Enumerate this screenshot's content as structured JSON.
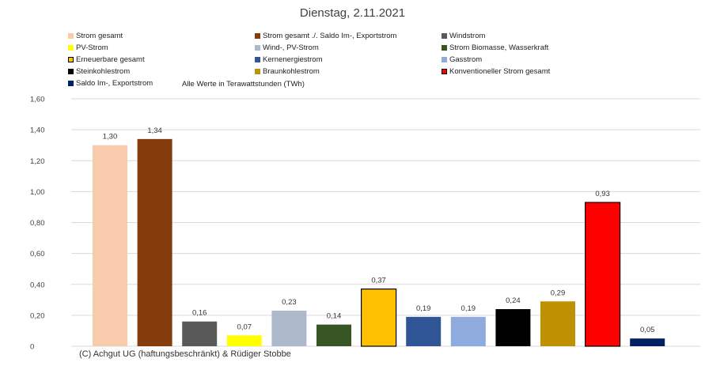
{
  "chart_data": {
    "type": "bar",
    "title": "Dienstag, 2.11.2021",
    "subtitle": "Alle Werte in Terawattstunden (TWh)",
    "ylim": [
      0,
      1.6
    ],
    "yticks": [
      "0",
      "0,20",
      "0,40",
      "0,60",
      "0,80",
      "1,00",
      "1,20",
      "1,40",
      "1,60"
    ],
    "grid": true,
    "legend_position": "top",
    "categories": [
      "Strom gesamt",
      "Strom gesamt ./. Saldo Im-, Exportstrom",
      "Windstrom",
      "PV-Strom",
      "Wind-, PV-Strom",
      "Strom Biomasse, Wasserkraft",
      "Erneuerbare gesamt",
      "Kernenergiestrom",
      "Gasstrom",
      "Steinkohlestrom",
      "Braunkohlestrom",
      "Konventioneller Strom gesamt",
      "Saldo Im-, Exportstrom"
    ],
    "values": [
      1.3,
      1.34,
      0.16,
      0.07,
      0.23,
      0.14,
      0.37,
      0.19,
      0.19,
      0.24,
      0.29,
      0.93,
      0.05
    ],
    "value_labels": [
      "1,30",
      "1,34",
      "0,16",
      "0,07",
      "0,23",
      "0,14",
      "0,37",
      "0,19",
      "0,19",
      "0,24",
      "0,29",
      "0,93",
      "0,05"
    ],
    "colors": [
      "#f8cbad",
      "#843c0c",
      "#595959",
      "#ffff00",
      "#adb9ca",
      "#375623",
      "#ffc000",
      "#2f5597",
      "#8faadc",
      "#000000",
      "#bf9000",
      "#ff0000",
      "#002060"
    ],
    "outlined": [
      false,
      false,
      false,
      false,
      false,
      false,
      true,
      false,
      false,
      false,
      false,
      true,
      false
    ],
    "credit": "(C) Achgut UG (haftungsbeschränkt) & Rüdiger Stobbe"
  }
}
